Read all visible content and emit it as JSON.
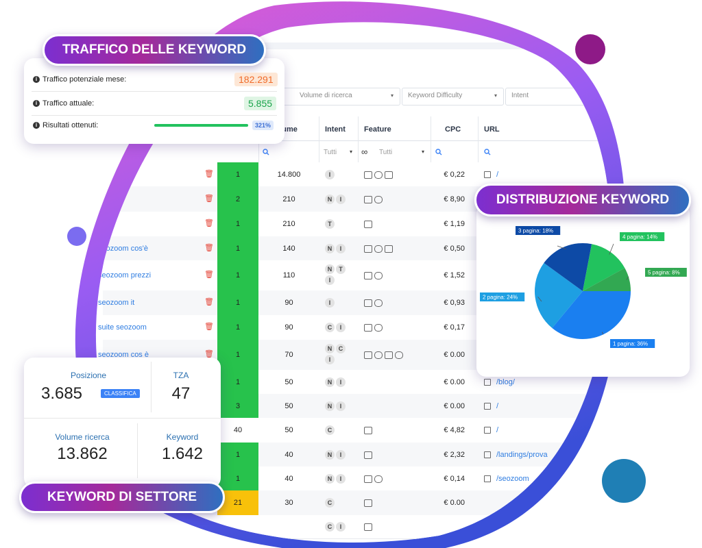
{
  "traffic_card": {
    "title": "TRAFFICO DELLE KEYWORD",
    "rows": [
      {
        "label": "Traffico potenziale mese:",
        "value": "182.291"
      },
      {
        "label": "Traffico attuale:",
        "value": "5.855"
      },
      {
        "label": "Risultati ottenuti:",
        "value": "321%"
      }
    ]
  },
  "stats_card": {
    "title": "KEYWORD DI SETTORE",
    "items": [
      {
        "label": "Posizione",
        "value": "3.685",
        "badge": "CLASSIFICA"
      },
      {
        "label": "TZA",
        "value": "47"
      },
      {
        "label": "Volume ricerca",
        "value": "13.862"
      },
      {
        "label": "Keyword",
        "value": "1.642"
      }
    ]
  },
  "distribution": {
    "title": "DISTRIBUZIONE KEYWORD",
    "type": "pie",
    "categories": [
      "1 pagina",
      "2 pagina",
      "3 pagina",
      "4 pagina",
      "5 pagina"
    ],
    "values": [
      36,
      24,
      18,
      14,
      8
    ],
    "value_labels": [
      "1 pagina: 36%",
      "2 pagina: 24%",
      "3 pagina: 18%",
      "4 pagina: 14%",
      "5 pagina: 8%"
    ],
    "colors": [
      "#1a7ff0",
      "#1e9fe2",
      "#0d4aa6",
      "#22c25e",
      "#32a852"
    ]
  },
  "table": {
    "filters": [
      "Volume di ricerca",
      "Keyword Difficulty",
      "Intent"
    ],
    "columns": [
      "Volume",
      "Intent",
      "Feature",
      "CPC",
      "URL"
    ],
    "selects": [
      "Tutti",
      "Tutti"
    ],
    "rows": [
      {
        "position": "1",
        "volume": "14.800",
        "intent": [
          "I"
        ],
        "cpc": "€ 0,22",
        "url": "/"
      },
      {
        "position": "2",
        "volume": "210",
        "intent": [
          "N",
          "I"
        ],
        "cpc": "€ 8,90"
      },
      {
        "position": "1",
        "volume": "210",
        "intent": [
          "T"
        ],
        "cpc": "€ 1,19"
      },
      {
        "keyword": "seozoom cos'è",
        "position": "1",
        "volume": "140",
        "intent": [
          "N",
          "I"
        ],
        "cpc": "€ 0,50"
      },
      {
        "keyword": "seozoom prezzi",
        "position": "1",
        "volume": "110",
        "intent": [
          "N",
          "T",
          "I"
        ],
        "cpc": "€ 1,52"
      },
      {
        "keyword": "seozoom it",
        "position": "1",
        "volume": "90",
        "intent": [
          "I"
        ],
        "cpc": "€ 0,93"
      },
      {
        "keyword": "suite seozoom",
        "position": "1",
        "volume": "90",
        "intent": [
          "C",
          "I"
        ],
        "cpc": "€ 0,17"
      },
      {
        "keyword": "seozoom cos è",
        "position": "1",
        "volume": "70",
        "intent": [
          "N",
          "C",
          "I"
        ],
        "cpc": "€ 0.00"
      },
      {
        "position": "1",
        "volume": "50",
        "intent": [
          "N",
          "I"
        ],
        "cpc": "€ 0.00",
        "url": "/blog/"
      },
      {
        "position": "3",
        "volume": "50",
        "intent": [
          "N",
          "I"
        ],
        "cpc": "€ 0.00",
        "url": "/"
      },
      {
        "position": "40",
        "volume": "50",
        "intent": [
          "C"
        ],
        "cpc": "€ 4,82",
        "url": "/"
      },
      {
        "position": "1",
        "volume": "40",
        "intent": [
          "N",
          "I"
        ],
        "cpc": "€ 2,32",
        "url": "/landings/prova"
      },
      {
        "position": "1",
        "volume": "40",
        "intent": [
          "N",
          "I"
        ],
        "cpc": "€ 0,14",
        "url": "/seozoom"
      },
      {
        "position": "21",
        "volume": "30",
        "intent": [
          "C"
        ],
        "cpc": "€ 0.00"
      },
      {
        "intent": [
          "C",
          "I"
        ]
      }
    ]
  }
}
